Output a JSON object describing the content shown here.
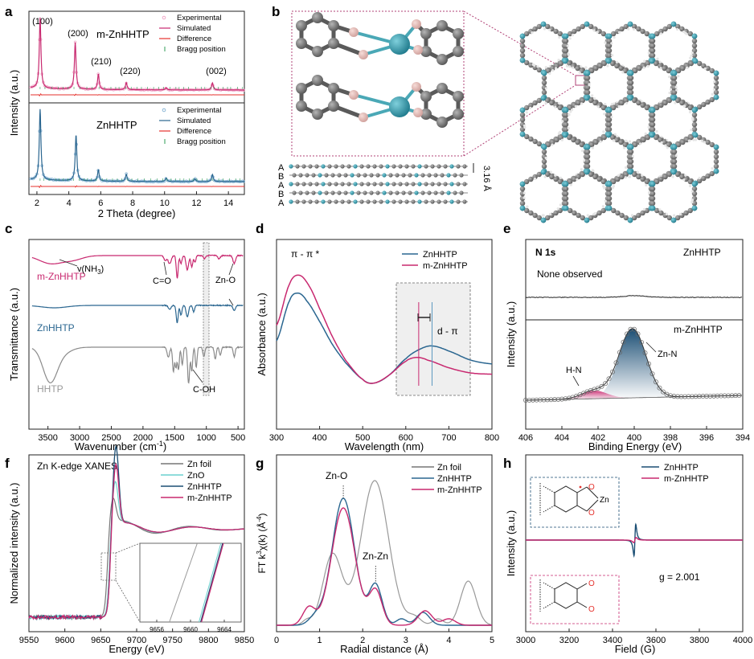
{
  "panel_letters": [
    "a",
    "b",
    "c",
    "d",
    "e",
    "f",
    "g",
    "h"
  ],
  "colors": {
    "magenta": "#c8286f",
    "blue": "#2a6690",
    "red": "#e5322d",
    "green": "#2e9c55",
    "gray": "#777777",
    "cyan": "#6ad1cf",
    "navy": "#1b4e74",
    "teal": "#2f95a7",
    "pink": "#e8b8b4",
    "atom_gray": "#6e6e6e",
    "box": "#b14377"
  },
  "chart_data": [
    {
      "id": "a",
      "type": "line",
      "xlabel": "2 Theta (degree)",
      "ylabel": "Intensity (a.u.)",
      "xlim": [
        1.5,
        15
      ],
      "xticks": [
        2,
        4,
        6,
        8,
        10,
        12,
        14
      ],
      "series": [
        {
          "name": "m-ZnHHTP",
          "legend": [
            "Experimental",
            "Simulated",
            "Difference",
            "Bragg position"
          ],
          "peaks": [
            {
              "x": 2.2,
              "h": 1.0
            },
            {
              "x": 4.4,
              "h": 0.66
            },
            {
              "x": 5.85,
              "h": 0.22
            },
            {
              "x": 7.6,
              "h": 0.1
            },
            {
              "x": 10.1,
              "h": 0.03
            },
            {
              "x": 13.0,
              "h": 0.1
            }
          ],
          "peak_labels": [
            {
              "x": 2.2,
              "label": "(100)"
            },
            {
              "x": 4.4,
              "label": "(200)"
            },
            {
              "x": 5.85,
              "label": "(210)"
            },
            {
              "x": 7.6,
              "label": "(220)"
            },
            {
              "x": 13.0,
              "label": "(002)"
            }
          ]
        },
        {
          "name": "ZnHHTP",
          "legend": [
            "Experimental",
            "Simulated",
            "Difference",
            "Bragg position"
          ],
          "peaks": [
            {
              "x": 2.2,
              "h": 1.0
            },
            {
              "x": 4.45,
              "h": 0.65
            },
            {
              "x": 5.85,
              "h": 0.16
            },
            {
              "x": 7.6,
              "h": 0.1
            },
            {
              "x": 10.1,
              "h": 0.05
            },
            {
              "x": 13.0,
              "h": 0.1
            },
            {
              "x": 11.9,
              "h": 0.04
            }
          ]
        }
      ]
    },
    {
      "id": "c",
      "type": "line",
      "xlabel": "Wavenumber (cm",
      "xlabel_sup": "-1",
      "xlabel_end": ")",
      "ylabel": "Transmittance (a.u.)",
      "xlim": [
        3800,
        400
      ],
      "xticks": [
        3500,
        3000,
        2500,
        2000,
        1500,
        1000,
        500
      ],
      "series": [
        {
          "name": "m-ZnHHTP"
        },
        {
          "name": "ZnHHTP"
        },
        {
          "name": "HHTP"
        }
      ],
      "annotations": [
        "v(NH",
        "3",
        ")",
        "C=O",
        "Zn-O",
        "C-OH"
      ]
    },
    {
      "id": "d",
      "type": "line",
      "xlabel": "Wavelength (nm)",
      "ylabel": "Absorbance (a.u.)",
      "xlim": [
        300,
        800
      ],
      "xticks": [
        300,
        400,
        500,
        600,
        700,
        800
      ],
      "series": [
        {
          "name": "ZnHHTP",
          "points": [
            [
              300,
              0.35
            ],
            [
              330,
              0.66
            ],
            [
              350,
              0.72
            ],
            [
              370,
              0.66
            ],
            [
              400,
              0.5
            ],
            [
              430,
              0.32
            ],
            [
              460,
              0.18
            ],
            [
              500,
              0.05
            ],
            [
              525,
              0.02
            ],
            [
              560,
              0.08
            ],
            [
              600,
              0.21
            ],
            [
              630,
              0.28
            ],
            [
              660,
              0.31
            ],
            [
              700,
              0.27
            ],
            [
              750,
              0.2
            ],
            [
              800,
              0.17
            ]
          ]
        },
        {
          "name": "m-ZnHHTP",
          "points": [
            [
              300,
              0.47
            ],
            [
              330,
              0.79
            ],
            [
              352,
              0.86
            ],
            [
              375,
              0.78
            ],
            [
              400,
              0.6
            ],
            [
              430,
              0.38
            ],
            [
              460,
              0.2
            ],
            [
              500,
              0.05
            ],
            [
              525,
              0.02
            ],
            [
              560,
              0.08
            ],
            [
              600,
              0.19
            ],
            [
              625,
              0.22
            ],
            [
              650,
              0.2
            ],
            [
              700,
              0.14
            ],
            [
              750,
              0.1
            ],
            [
              800,
              0.09
            ]
          ]
        }
      ],
      "annotations": [
        "π - π *",
        "d - π"
      ]
    },
    {
      "id": "e",
      "type": "line",
      "title": "N 1s",
      "xlabel": "Binding Energy (eV)",
      "ylabel": "Intensity (a.u.)",
      "xlim": [
        406,
        394
      ],
      "xticks": [
        406,
        404,
        402,
        400,
        398,
        396,
        394
      ],
      "series": [
        {
          "name": "ZnHHTP"
        },
        {
          "name": "m-ZnHHTP"
        }
      ],
      "annotations": [
        "None observed",
        "H-N",
        "Zn-N"
      ]
    },
    {
      "id": "f",
      "type": "line",
      "title": "Zn K-edge XANES",
      "xlabel": "Energy (eV)",
      "ylabel": "Normalized intensity (a.u.)",
      "xlim": [
        9550,
        9850
      ],
      "xticks": [
        9550,
        9600,
        9650,
        9700,
        9750,
        9800,
        9850
      ],
      "inset_xticks": [
        9656,
        9660,
        9664
      ],
      "series": [
        {
          "name": "Zn foil"
        },
        {
          "name": "ZnO"
        },
        {
          "name": "ZnHHTP"
        },
        {
          "name": "m-ZnHHTP"
        }
      ]
    },
    {
      "id": "g",
      "type": "line",
      "xlabel": "Radial distance (Å)",
      "ylabel": "FT k",
      "ylabel_sup": "3",
      "ylabel_mid": "χ(k) (Å",
      "ylabel_sup2": "-4",
      "ylabel_end": ")",
      "xlim": [
        0,
        5
      ],
      "xticks": [
        0,
        1,
        2,
        3,
        4,
        5
      ],
      "series": [
        {
          "name": "Zn foil"
        },
        {
          "name": "ZnHHTP"
        },
        {
          "name": "m-ZnHHTP"
        }
      ],
      "annotations": [
        "Zn-O",
        "Zn-Zn"
      ]
    },
    {
      "id": "h",
      "type": "line",
      "xlabel": "Field (G)",
      "ylabel": "Intensity (a.u.)",
      "xlim": [
        3000,
        4000
      ],
      "xticks": [
        3000,
        3200,
        3400,
        3600,
        3800,
        4000
      ],
      "series": [
        {
          "name": "ZnHHTP"
        },
        {
          "name": "m-ZnHHTP"
        }
      ],
      "annotations": [
        "g = 2.001",
        "Zn"
      ]
    }
  ],
  "panel_b": {
    "stack_letters": [
      "A",
      "B",
      "A",
      "B",
      "A"
    ],
    "spacing": "3.16 Å"
  }
}
